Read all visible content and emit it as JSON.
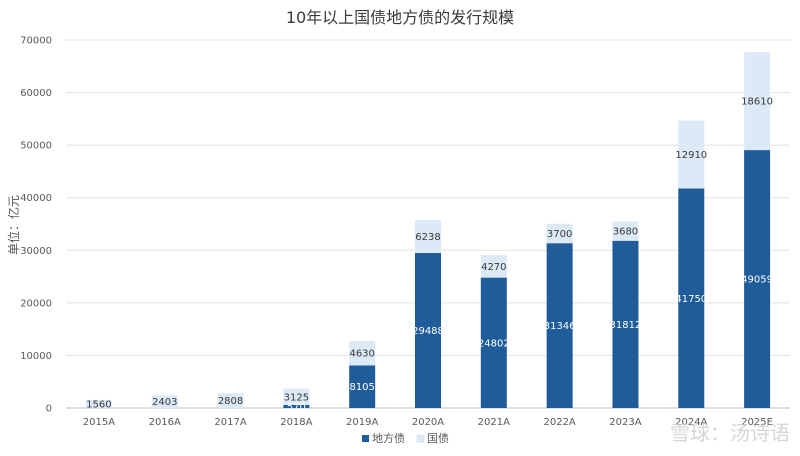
{
  "watermark": {
    "text": "雪球：汤诗语"
  },
  "chart_data": {
    "type": "bar",
    "stacked": true,
    "title": "10年以上国债地方债的发行规模",
    "ylabel": "单位：亿元",
    "xlabel": "",
    "categories": [
      "2015A",
      "2016A",
      "2017A",
      "2018A",
      "2019A",
      "2020A",
      "2021A",
      "2022A",
      "2023A",
      "2024A",
      "2025E"
    ],
    "series": [
      {
        "name": "地方债",
        "color": "#1f5c99",
        "values": [
          0,
          0,
          0,
          570,
          8105,
          29488,
          24802,
          31346,
          31812,
          41750,
          49059
        ],
        "labels": [
          "",
          "",
          "",
          "570",
          "8105",
          "29488",
          "24802",
          "31346",
          "31812",
          "41750",
          "49059"
        ]
      },
      {
        "name": "国债",
        "color": "#dce9f6",
        "values": [
          1560,
          2403,
          2808,
          3125,
          4630,
          6238,
          4270,
          3700,
          3680,
          12910,
          18610
        ],
        "labels": [
          "1560",
          "2403",
          "2808",
          "3125",
          "4630",
          "6238",
          "4270",
          "3700",
          "3680",
          "12910",
          "18610"
        ]
      }
    ],
    "ylim": [
      0,
      70000
    ],
    "yticks": [
      "0",
      "10000",
      "20000",
      "30000",
      "40000",
      "50000",
      "60000",
      "70000"
    ],
    "grid": true,
    "legend_position": "bottom"
  }
}
